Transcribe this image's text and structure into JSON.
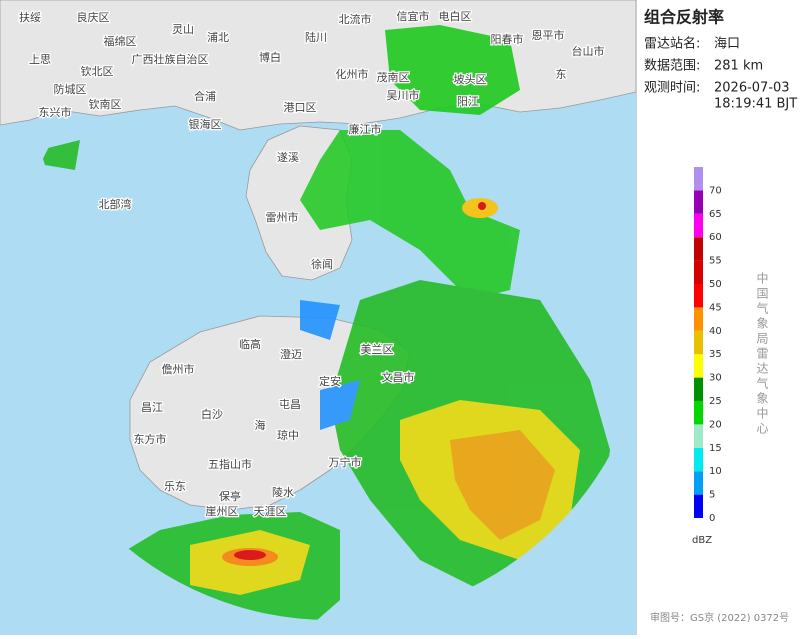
{
  "panel": {
    "title": "组合反射率",
    "station_label": "雷达站名:",
    "station": "海口",
    "range_label": "数据范围:",
    "range": "281 km",
    "time_label": "观测时间:",
    "date": "2026-07-03",
    "time": "18:19:41 BJT"
  },
  "legend": {
    "unit": "dBZ",
    "bands": [
      {
        "value": 0,
        "color": "#0000f6"
      },
      {
        "value": 5,
        "color": "#01a0f6"
      },
      {
        "value": 10,
        "color": "#00ecec"
      },
      {
        "value": 15,
        "color": "#9fe8c8"
      },
      {
        "value": 20,
        "color": "#00d800"
      },
      {
        "value": 25,
        "color": "#019000"
      },
      {
        "value": 30,
        "color": "#ffff00"
      },
      {
        "value": 35,
        "color": "#e7c000"
      },
      {
        "value": 40,
        "color": "#ff9000"
      },
      {
        "value": 45,
        "color": "#ff0000"
      },
      {
        "value": 50,
        "color": "#d60000"
      },
      {
        "value": 55,
        "color": "#c00000"
      },
      {
        "value": 60,
        "color": "#ff00f0"
      },
      {
        "value": 65,
        "color": "#9600b4"
      },
      {
        "value": 70,
        "color": "#ad90f0"
      }
    ]
  },
  "credit": "中国气象局雷达气象中心",
  "approval": "审图号：GS京 (2022) 0372号",
  "places": [
    "扶绥",
    "良庆区",
    "灵山",
    "浦北",
    "福绵区",
    "陆川",
    "北流市",
    "信宜市",
    "电白区",
    "阳春市",
    "恩平市",
    "台山市",
    "上思",
    "广西壮族自治区",
    "博白",
    "化州市",
    "茂南区",
    "阳江",
    "钦北区",
    "东",
    "防城区",
    "钦南区",
    "合浦",
    "东兴市",
    "港口区",
    "银海区",
    "廉江市",
    "吴川市",
    "坡头区",
    "北部湾",
    "遂溪",
    "雷州市",
    "徐闻",
    "儋州市",
    "临高",
    "澄迈",
    "美兰区",
    "文昌市",
    "定安",
    "昌江",
    "白沙",
    "屯昌",
    "琼中",
    "东方市",
    "五指山市",
    "万宁市",
    "乐东",
    "保亭",
    "陵水",
    "崖州区",
    "天涯区",
    "海"
  ]
}
